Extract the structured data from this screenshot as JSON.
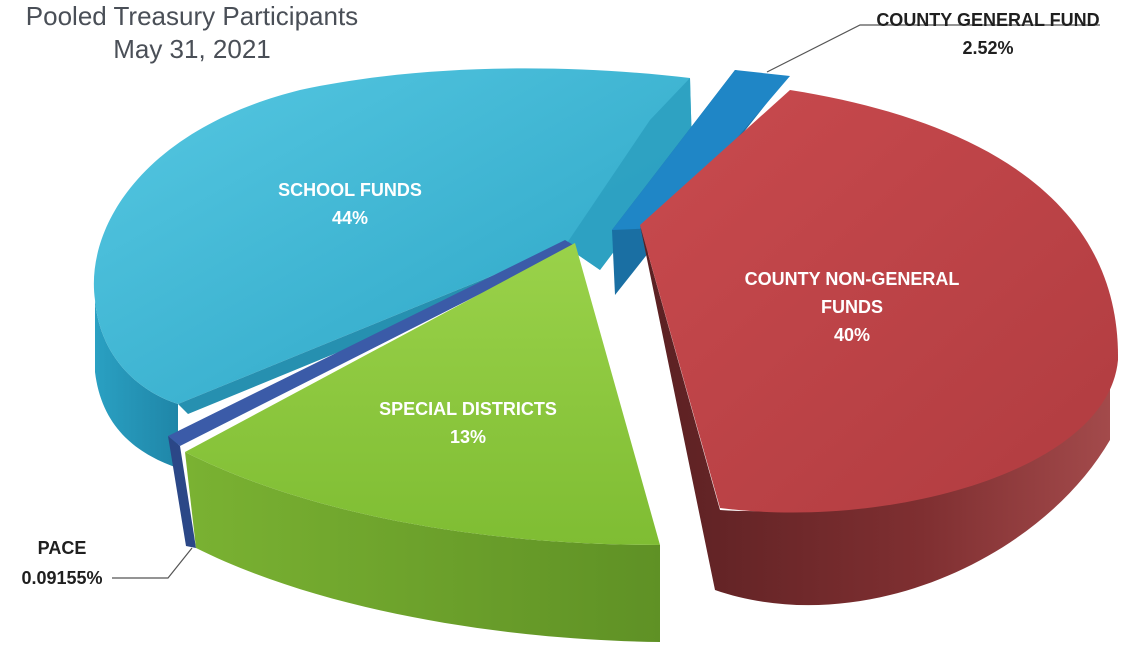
{
  "chart_data": {
    "type": "pie",
    "title": "Pooled Treasury Participants",
    "subtitle": "May 31, 2021",
    "slices": [
      {
        "label_lines": [
          "COUNTY GENERAL FUND",
          "2.52%"
        ],
        "value": 2.52,
        "color": "#1f86c6"
      },
      {
        "label_lines": [
          "COUNTY NON-GENERAL",
          "FUNDS",
          "40%"
        ],
        "value": 40,
        "color": "#c0454a"
      },
      {
        "label_lines": [
          "SPECIAL DISTRICTS",
          "13%"
        ],
        "value": 13,
        "color": "#8dc63f"
      },
      {
        "label_lines": [
          "PACE",
          "0.09155%"
        ],
        "value": 0.09155,
        "color": "#3b5ba8"
      },
      {
        "label_lines": [
          "SCHOOL FUNDS",
          "44%"
        ],
        "value": 44,
        "color": "#35b7d4"
      }
    ]
  }
}
